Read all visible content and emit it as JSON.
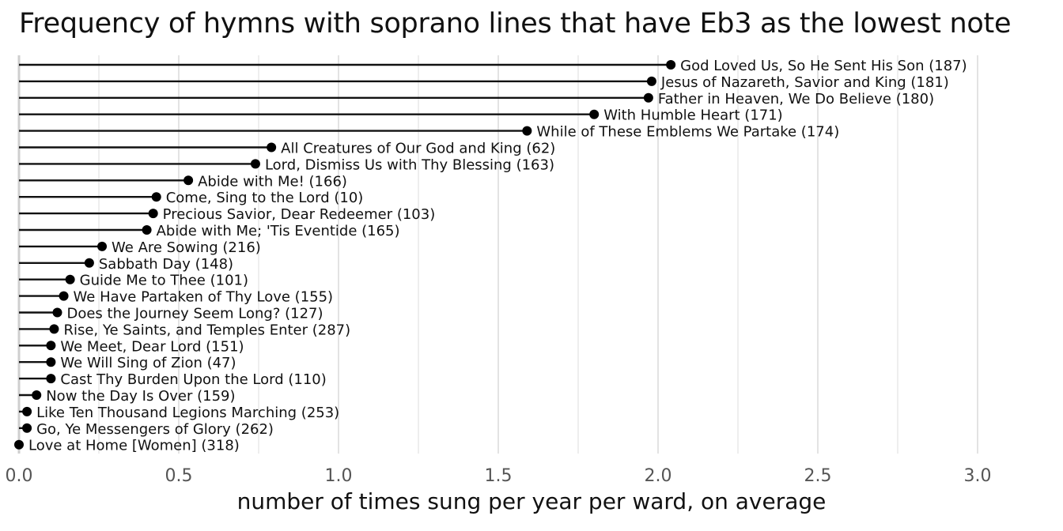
{
  "chart_data": {
    "type": "lollipop",
    "title": "Frequency of hymns with soprano lines that have Eb3 as the lowest note",
    "xlabel": "number of times sung per year per ward, on average",
    "ylabel": "",
    "xlim": [
      0,
      3.2
    ],
    "xticks": [
      0.0,
      0.5,
      1.0,
      1.5,
      2.0,
      2.5,
      3.0
    ],
    "xtick_labels": [
      "0.0",
      "0.5",
      "1.0",
      "1.5",
      "2.0",
      "2.5",
      "3.0"
    ],
    "grid": true,
    "points": [
      {
        "label": "God Loved Us, So He Sent His Son (187)",
        "value": 2.04
      },
      {
        "label": "Jesus of Nazareth, Savior and King (181)",
        "value": 1.98
      },
      {
        "label": "Father in Heaven, We Do Believe (180)",
        "value": 1.97
      },
      {
        "label": "With Humble Heart (171)",
        "value": 1.8
      },
      {
        "label": "While of These Emblems We Partake (174)",
        "value": 1.59
      },
      {
        "label": "All Creatures of Our God and King (62)",
        "value": 0.79
      },
      {
        "label": "Lord, Dismiss Us with Thy Blessing (163)",
        "value": 0.74
      },
      {
        "label": "Abide with Me! (166)",
        "value": 0.53
      },
      {
        "label": "Come, Sing to the Lord (10)",
        "value": 0.43
      },
      {
        "label": "Precious Savior, Dear Redeemer (103)",
        "value": 0.42
      },
      {
        "label": "Abide with Me; 'Tis Eventide (165)",
        "value": 0.4
      },
      {
        "label": "We Are Sowing (216)",
        "value": 0.26
      },
      {
        "label": "Sabbath Day (148)",
        "value": 0.22
      },
      {
        "label": "Guide Me to Thee (101)",
        "value": 0.16
      },
      {
        "label": "We Have Partaken of Thy Love (155)",
        "value": 0.14
      },
      {
        "label": "Does the Journey Seem Long? (127)",
        "value": 0.12
      },
      {
        "label": "Rise, Ye Saints, and Temples Enter (287)",
        "value": 0.11
      },
      {
        "label": "We Meet, Dear Lord (151)",
        "value": 0.1
      },
      {
        "label": "We Will Sing of Zion (47)",
        "value": 0.1
      },
      {
        "label": "Cast Thy Burden Upon the Lord (110)",
        "value": 0.1
      },
      {
        "label": "Now the Day Is Over (159)",
        "value": 0.055
      },
      {
        "label": "Like Ten Thousand Legions Marching (253)",
        "value": 0.025
      },
      {
        "label": "Go, Ye Messengers of Glory (262)",
        "value": 0.025
      },
      {
        "label": "Love at Home [Women] (318)",
        "value": 0.0
      }
    ],
    "colors": {
      "line": "#111111",
      "point": "#000000",
      "grid": "#e3e3e3",
      "tick": "#555555"
    }
  }
}
